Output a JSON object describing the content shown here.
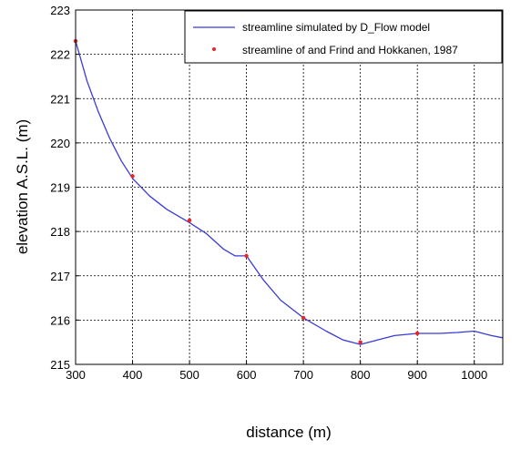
{
  "chart_data": {
    "type": "line",
    "xlabel": "distance (m)",
    "ylabel": "elevation A.S.L. (m)",
    "xlim": [
      300,
      1050
    ],
    "ylim": [
      215,
      223
    ],
    "x_ticks": [
      300,
      400,
      500,
      600,
      700,
      800,
      900,
      1000
    ],
    "y_ticks": [
      215,
      216,
      217,
      218,
      219,
      220,
      221,
      222,
      223
    ],
    "grid": true,
    "legend_position": "top-right",
    "series": [
      {
        "name": "streamline simulated by D_Flow model",
        "style": "line",
        "color": "#3a3ad6",
        "x": [
          300,
          320,
          340,
          360,
          380,
          400,
          430,
          460,
          500,
          530,
          560,
          580,
          600,
          630,
          660,
          700,
          740,
          770,
          800,
          830,
          860,
          900,
          940,
          970,
          1000,
          1030,
          1050
        ],
        "y": [
          222.3,
          221.4,
          220.7,
          220.1,
          219.6,
          219.2,
          218.8,
          218.5,
          218.2,
          217.95,
          217.6,
          217.45,
          217.45,
          216.9,
          216.45,
          216.05,
          215.75,
          215.55,
          215.45,
          215.55,
          215.65,
          215.7,
          215.7,
          215.72,
          215.75,
          215.65,
          215.6
        ]
      },
      {
        "name": "streamline of and Frind and Hokkanen, 1987",
        "style": "scatter",
        "color": "#e8262a",
        "x": [
          300,
          400,
          500,
          600,
          700,
          800,
          900
        ],
        "y": [
          222.3,
          219.25,
          218.25,
          217.45,
          216.05,
          215.5,
          215.7
        ]
      }
    ]
  }
}
